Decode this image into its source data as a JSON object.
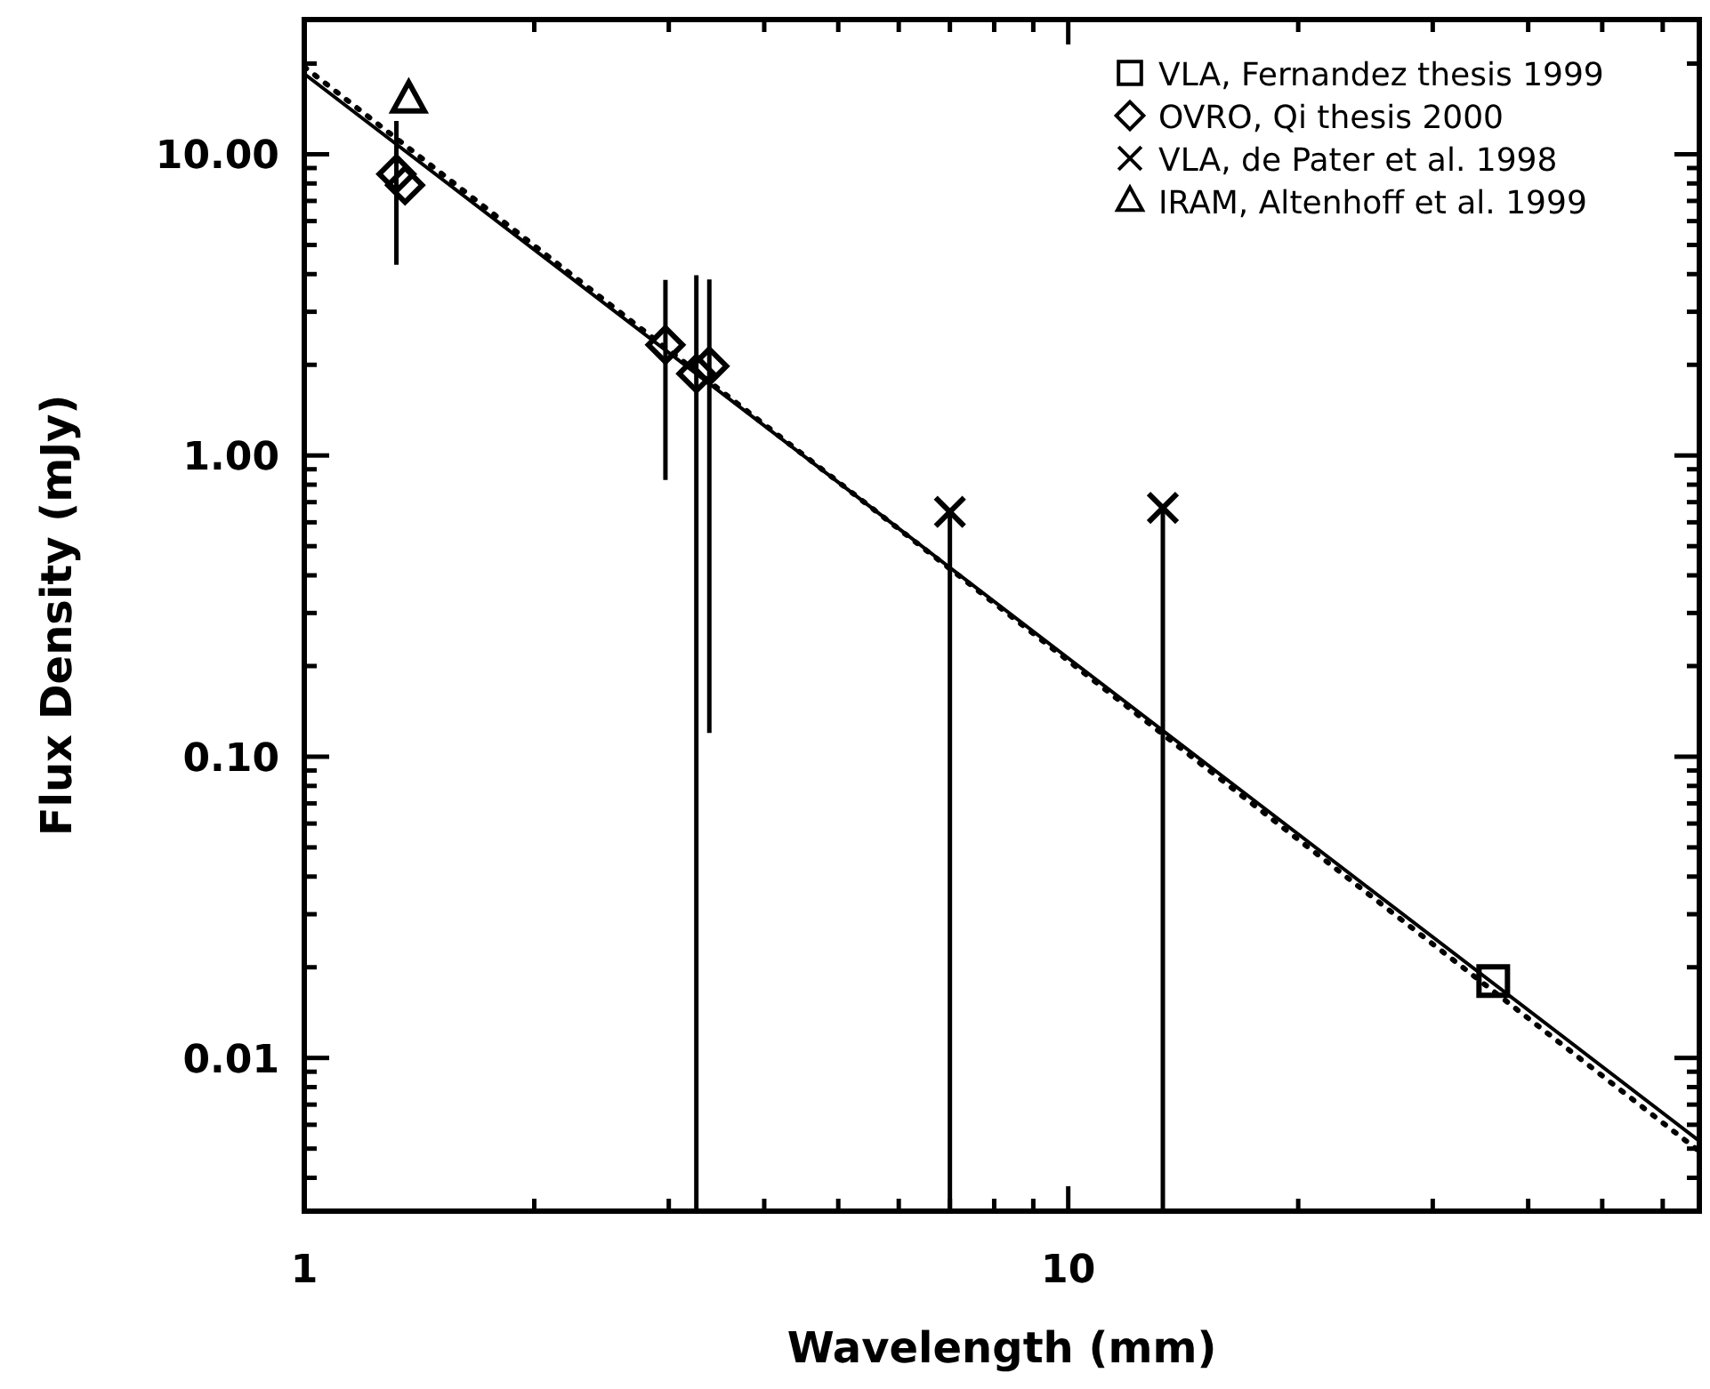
{
  "chart_data": {
    "type": "scatter",
    "xlabel": "Wavelength (mm)",
    "ylabel": "Flux Density (mJy)",
    "log": "xy",
    "xlim": [
      1,
      67
    ],
    "ylim": [
      0.0031,
      28
    ],
    "xticks": [
      1,
      {
        "value": 2,
        "label": null
      },
      {
        "value": 3,
        "label": null
      },
      {
        "value": 4,
        "label": null
      },
      {
        "value": 5,
        "label": null
      },
      {
        "value": 6,
        "label": null
      },
      {
        "value": 7,
        "label": null
      },
      {
        "value": 8,
        "label": null
      },
      {
        "value": 9,
        "label": null
      },
      10,
      {
        "value": 20,
        "label": null
      },
      {
        "value": 30,
        "label": null
      },
      {
        "value": 40,
        "label": null
      },
      {
        "value": 50,
        "label": null
      },
      {
        "value": 60,
        "label": null
      }
    ],
    "yticks": [
      {
        "value": 0.004,
        "label": null
      },
      {
        "value": 0.005,
        "label": null
      },
      {
        "value": 0.006,
        "label": null
      },
      {
        "value": 0.007,
        "label": null
      },
      {
        "value": 0.008,
        "label": null
      },
      {
        "value": 0.009,
        "label": null
      },
      {
        "value": 0.01,
        "label": "0.01"
      },
      {
        "value": 0.02,
        "label": null
      },
      {
        "value": 0.03,
        "label": null
      },
      {
        "value": 0.04,
        "label": null
      },
      {
        "value": 0.05,
        "label": null
      },
      {
        "value": 0.06,
        "label": null
      },
      {
        "value": 0.07,
        "label": null
      },
      {
        "value": 0.08,
        "label": null
      },
      {
        "value": 0.09,
        "label": null
      },
      {
        "value": 0.1,
        "label": "0.10"
      },
      {
        "value": 0.2,
        "label": null
      },
      {
        "value": 0.3,
        "label": null
      },
      {
        "value": 0.4,
        "label": null
      },
      {
        "value": 0.5,
        "label": null
      },
      {
        "value": 0.6,
        "label": null
      },
      {
        "value": 0.7,
        "label": null
      },
      {
        "value": 0.8,
        "label": null
      },
      {
        "value": 0.9,
        "label": null
      },
      {
        "value": 1,
        "label": "1.00"
      },
      {
        "value": 2,
        "label": null
      },
      {
        "value": 3,
        "label": null
      },
      {
        "value": 4,
        "label": null
      },
      {
        "value": 5,
        "label": null
      },
      {
        "value": 6,
        "label": null
      },
      {
        "value": 7,
        "label": null
      },
      {
        "value": 8,
        "label": null
      },
      {
        "value": 9,
        "label": null
      },
      {
        "value": 10,
        "label": "10.00"
      },
      {
        "value": 20,
        "label": null
      }
    ],
    "legend": "top right",
    "series": [
      {
        "name": "VLA, Fernandez thesis 1999",
        "color": "#000000",
        "marker": "square",
        "x": [
          36
        ],
        "values": [
          0.018
        ]
      },
      {
        "name": "OVRO, Qi thesis 2000",
        "color": "#000000",
        "marker": "diamond",
        "x": [
          1.32,
          1.355,
          2.97,
          3.26,
          3.39
        ],
        "values": [
          8.6,
          7.9,
          2.33,
          1.87,
          1.98
        ],
        "errors": [
          [
            4.3,
            12.9
          ],
          null,
          [
            0.83,
            3.83
          ],
          [
            0.0031,
            3.97
          ],
          [
            0.12,
            3.84
          ]
        ]
      },
      {
        "name": "VLA, de Pater et al. 1998",
        "color": "#000000",
        "marker": "cross",
        "x": [
          7.0,
          13.3
        ],
        "values": [
          0.65,
          0.67
        ],
        "errors": [
          [
            0.0031,
            0.65
          ],
          [
            0.0031,
            0.67
          ]
        ]
      },
      {
        "name": "IRAM, Altenhoff et al. 1999",
        "color": "#000000",
        "marker": "triangle",
        "x": [
          1.37
        ],
        "values": [
          15.2
        ]
      },
      {
        "type": "line",
        "color": "#000000",
        "line_style": "solid",
        "x": [
          1,
          67
        ],
        "values": [
          18.5,
          0.0053
        ]
      },
      {
        "type": "line",
        "color": "#000000",
        "line_style": "dotted",
        "x": [
          1,
          67
        ],
        "values": [
          19.5,
          0.0049
        ]
      }
    ]
  }
}
